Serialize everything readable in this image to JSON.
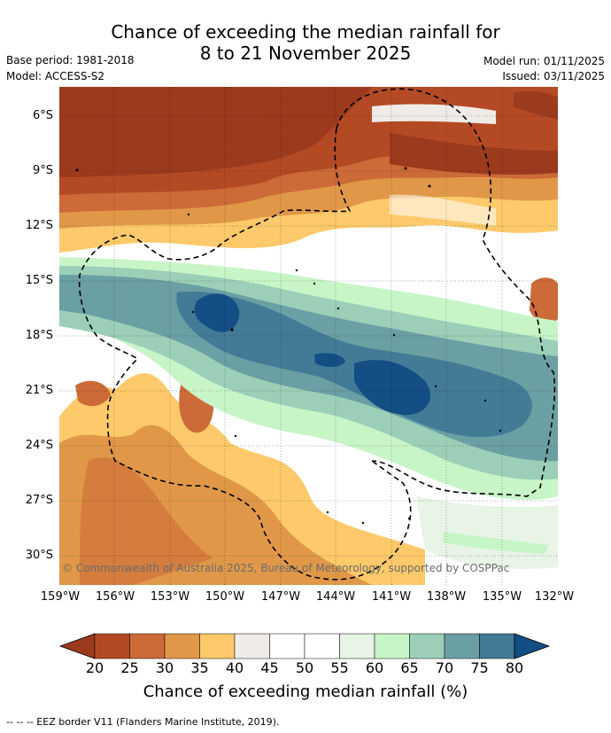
{
  "title_line1": "Chance of exceeding the median rainfall for",
  "title_line2": "8 to 21 November 2025",
  "meta": {
    "base_period": "Base period: 1981-2018",
    "model": "Model: ACCESS-S2",
    "model_run": "Model run: 01/11/2025",
    "issued": "Issued: 03/11/2025"
  },
  "map": {
    "lat_labels": [
      "6°S",
      "9°S",
      "12°S",
      "15°S",
      "18°S",
      "21°S",
      "24°S",
      "27°S",
      "30°S"
    ],
    "lon_labels": [
      "159°W",
      "156°W",
      "153°W",
      "150°W",
      "147°W",
      "144°W",
      "141°W",
      "138°W",
      "135°W",
      "132°W"
    ],
    "credit": "© Commonwealth of Australia 2025, Bureau of Meteorology, supported by COSPPac"
  },
  "colorbar": {
    "ticks": [
      "20",
      "25",
      "30",
      "35",
      "40",
      "45",
      "50",
      "55",
      "60",
      "65",
      "70",
      "75",
      "80"
    ],
    "colors": [
      "#9c3a1e",
      "#b44a24",
      "#cc6a38",
      "#e09848",
      "#fdc96a",
      "#efebe6",
      "#ffffff",
      "#ffffff",
      "#e8f4e6",
      "#c8f5c8",
      "#9bcfb8",
      "#6a9fa4",
      "#437a96",
      "#134e85"
    ],
    "title": "Chance of exceeding median rainfall (%)"
  },
  "eez_note": "-- -- -- EEZ border V11 (Flanders Marine Institute, 2019)."
}
